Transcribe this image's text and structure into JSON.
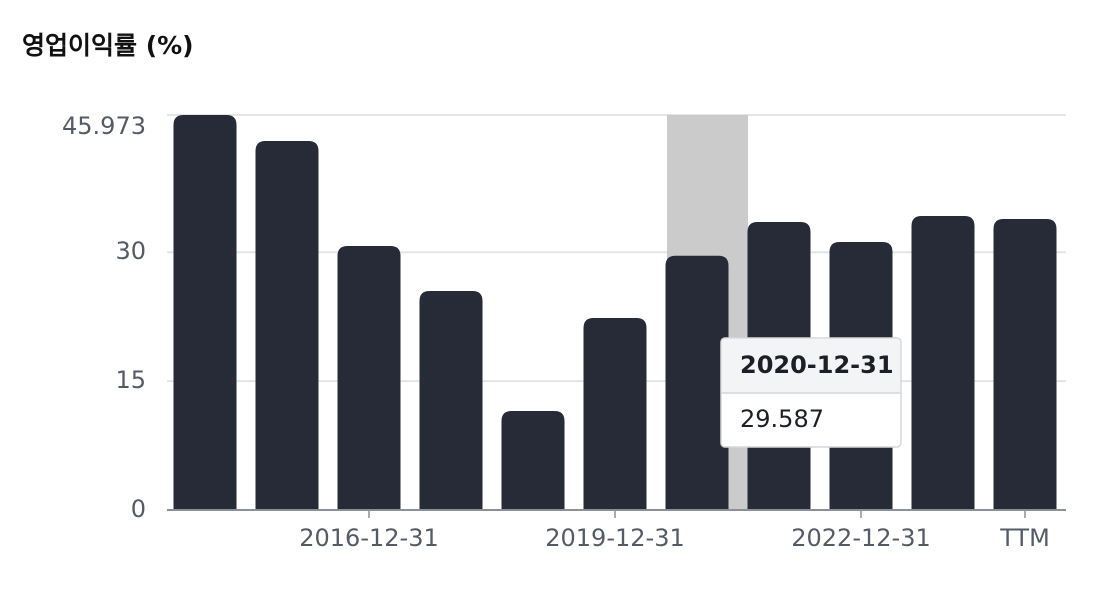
{
  "chart_data": {
    "type": "bar",
    "title": "영업이익률 (%)",
    "categories": [
      null,
      null,
      "2016-12-31",
      null,
      null,
      "2019-12-31",
      null,
      null,
      "2022-12-31",
      null,
      "TTM"
    ],
    "values": [
      45.973,
      42.95,
      30.73,
      25.49,
      11.52,
      22.35,
      29.587,
      33.52,
      31.19,
      34.22,
      33.87
    ],
    "color": "#262b37",
    "ylim": [
      0,
      45.973
    ],
    "yticks": [
      0,
      15,
      30,
      45.973
    ],
    "grid": true,
    "tooltip": {
      "category": "2020-12-31",
      "index": 6
    }
  }
}
